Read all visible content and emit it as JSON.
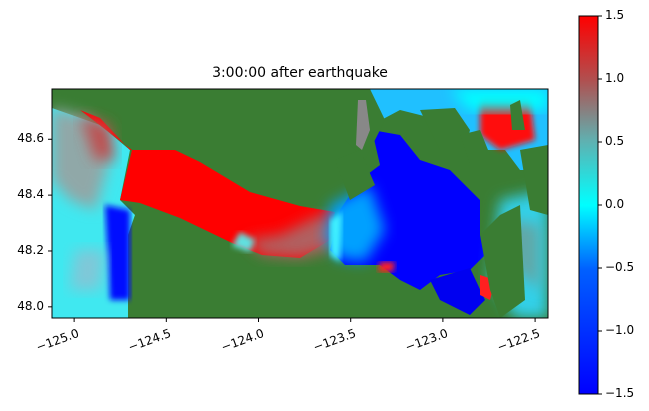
{
  "chart_data": {
    "type": "heatmap",
    "title": "3:00:00 after earthquake",
    "xlabel": "",
    "ylabel": "",
    "xlim": [
      -125.12,
      -122.43
    ],
    "ylim": [
      47.96,
      48.78
    ],
    "xticks": [
      -125.0,
      -124.5,
      -124.0,
      -123.5,
      -123.0,
      -122.5
    ],
    "xtick_labels": [
      "−125.0",
      "−124.5",
      "−124.0",
      "−123.5",
      "−123.0",
      "−122.5"
    ],
    "yticks": [
      48.0,
      48.2,
      48.4,
      48.6
    ],
    "ytick_labels": [
      "48.0",
      "48.2",
      "48.4",
      "48.6"
    ],
    "colorbar": {
      "range": [
        -1.5,
        1.5
      ],
      "ticks": [
        -1.5,
        -1.0,
        -0.5,
        0.0,
        0.5,
        1.0,
        1.5
      ],
      "tick_labels": [
        "−1.5",
        "−1.0",
        "−0.5",
        "0.0",
        "0.5",
        "1.0",
        "1.5"
      ],
      "colors": [
        "#0000ff",
        "#0080ff",
        "#00ffff",
        "#80a0a0",
        "#ff0000"
      ]
    },
    "land_color": "#3a7d33",
    "grid": false
  }
}
